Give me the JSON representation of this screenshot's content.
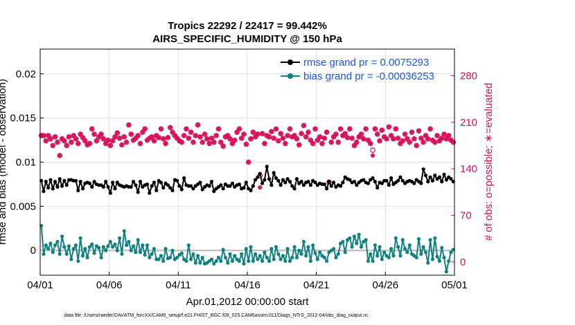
{
  "chart_data": {
    "type": "line",
    "title": "Tropics 22292 / 22417 = 99.442%",
    "subtitle": "AIRS_SPECIFIC_HUMIDITY @ 150 hPa",
    "xlabel": "Apr.01,2012 00:00:00 start",
    "ylabel_left": "rmse and bias (model - observation)",
    "ylabel_right": "# of obs: o=possible; ∗=evaluated",
    "footer": "data file: /Users/raeder/DAI/ATM_forcXX/CAM6_setup/f.e21.FHIST_BGC.f09_025.CAM6assim.011/Diags_NTrS_2012-04/obs_diag_output.nc",
    "xlim": [
      0,
      30
    ],
    "ylim_left": [
      -0.0028,
      0.0228
    ],
    "ylim_right": [
      -20,
      320
    ],
    "x_ticks": [
      0,
      5,
      10,
      15,
      20,
      25,
      30
    ],
    "x_tick_labels": [
      "04/01",
      "04/06",
      "04/11",
      "04/16",
      "04/21",
      "04/26",
      "05/01"
    ],
    "y_left_ticks": [
      0,
      0.005,
      0.01,
      0.015,
      0.02
    ],
    "y_left_tick_labels": [
      "0",
      "0.005",
      "0.01",
      "0.015",
      "0.02"
    ],
    "y_right_ticks": [
      0,
      70,
      140,
      210,
      280
    ],
    "y_right_tick_labels": [
      "0",
      "70",
      "140",
      "210",
      "280"
    ],
    "grid": true,
    "legend_position": "top-right",
    "colors": {
      "rmse": "#000000",
      "bias": "#118080",
      "obs": "#d6105a",
      "zero": "#b8b8b8",
      "legend_text": "#1a56e0"
    },
    "series": [
      {
        "name": "rmse grand pr = 0.0075293",
        "axis": "left",
        "values": [
          0.0079,
          0.0067,
          0.0078,
          0.0071,
          0.008,
          0.007,
          0.0078,
          0.0072,
          0.0081,
          0.0073,
          0.0079,
          0.0074,
          0.008,
          0.008,
          0.0079,
          0.0079,
          0.0068,
          0.0078,
          0.007,
          0.0076,
          0.0077,
          0.0076,
          0.0072,
          0.0078,
          0.0075,
          0.0074,
          0.0074,
          0.0072,
          0.0078,
          0.0072,
          0.0065,
          0.0077,
          0.007,
          0.0077,
          0.0074,
          0.0073,
          0.0072,
          0.0073,
          0.0072,
          0.0072,
          0.0078,
          0.0074,
          0.0066,
          0.0078,
          0.0072,
          0.0074,
          0.0075,
          0.0065,
          0.0073,
          0.0077,
          0.0068,
          0.0079,
          0.0077,
          0.0071,
          0.0076,
          0.0074,
          0.0071,
          0.0068,
          0.008,
          0.0079,
          0.0073,
          0.0069,
          0.0082,
          0.0074,
          0.0073,
          0.0073,
          0.007,
          0.0073,
          0.0075,
          0.0077,
          0.0069,
          0.0072,
          0.0074,
          0.0073,
          0.0078,
          0.0067,
          0.007,
          0.0072,
          0.0074,
          0.007,
          0.0075,
          0.0073,
          0.0073,
          0.0076,
          0.0072,
          0.0074,
          0.0075,
          0.007,
          0.0071,
          0.0077,
          0.007,
          0.0068,
          0.0073,
          0.008,
          0.0083,
          0.0087,
          0.0076,
          0.008,
          0.0095,
          0.0081,
          0.0074,
          0.0088,
          0.0082,
          0.0079,
          0.0074,
          0.008,
          0.0077,
          0.0081,
          0.0078,
          0.0073,
          0.007,
          0.0081,
          0.0076,
          0.0078,
          0.0074,
          0.0077,
          0.0078,
          0.0074,
          0.0079,
          0.0077,
          0.0074,
          0.0076,
          0.0075,
          0.0075,
          0.007,
          0.0078,
          0.0073,
          0.0077,
          0.0072,
          0.0074,
          0.0073,
          0.0077,
          0.0083,
          0.0081,
          0.008,
          0.0077,
          0.0078,
          0.0074,
          0.0077,
          0.0079,
          0.008,
          0.0077,
          0.0076,
          0.008,
          0.0082,
          0.0078,
          0.0071,
          0.0077,
          0.0076,
          0.0079,
          0.0079,
          0.0074,
          0.0082,
          0.0075,
          0.0077,
          0.0079,
          0.0083,
          0.0079,
          0.0076,
          0.0078,
          0.0079,
          0.0078,
          0.0076,
          0.008,
          0.0078,
          0.0076,
          0.0092,
          0.0085,
          0.0078,
          0.0083,
          0.0079,
          0.0085,
          0.0081,
          0.0083,
          0.0078,
          0.0086,
          0.008,
          0.0083,
          0.0081,
          0.0078
        ]
      },
      {
        "name": "bias grand pr = -0.00036253",
        "axis": "left",
        "values": [
          0.0028,
          -0.0004,
          0.0006,
          0.0002,
          0.0008,
          -0.0002,
          0.0006,
          0.001,
          -0.0004,
          0.0016,
          0.0004,
          -0.0004,
          0.0005,
          -0.001,
          0.0002,
          0.0006,
          -0.0012,
          0.0014,
          -0.0006,
          0.0002,
          -0.0008,
          0.0004,
          0.0007,
          -0.0003,
          0.0005,
          0.0003,
          -0.0008,
          0.0004,
          0.0,
          0.0005,
          0.001,
          0.0004,
          0.0007,
          0.0,
          0.0014,
          -0.0004,
          0.0022,
          0.0006,
          0.001,
          0.0,
          0.0005,
          -0.0002,
          0.0012,
          -0.0002,
          0.0006,
          -0.0005,
          0.0006,
          -0.0008,
          -0.0004,
          0.0002,
          -0.001,
          -0.001,
          -0.0006,
          -0.0012,
          0.0002,
          -0.0009,
          -0.0008,
          0.0,
          -0.001,
          -0.0008,
          -0.0005,
          -0.0003,
          -0.001,
          -0.0012,
          0.0006,
          -0.001,
          -0.0004,
          -0.0014,
          -0.0006,
          -0.0014,
          -0.0008,
          -0.0015,
          -0.0014,
          -0.0012,
          -0.001,
          -0.0015,
          -0.0012,
          -0.0008,
          -0.0012,
          0.0001,
          -0.0008,
          -0.0014,
          -0.0004,
          -0.0012,
          -0.0006,
          -0.001,
          -0.0012,
          -0.0004,
          -0.0015,
          0.0002,
          -0.0012,
          0.0004,
          -0.0012,
          -0.0004,
          -0.001,
          -0.0006,
          -0.0012,
          -0.0002,
          -0.0008,
          -0.0012,
          0.0002,
          -0.001,
          0.0004,
          -0.0004,
          -0.001,
          -0.0006,
          -0.0012,
          0.0002,
          -0.0012,
          -0.0008,
          0.0004,
          -0.0008,
          0.0,
          -0.0004,
          0.001,
          -0.0006,
          0.0004,
          -0.0012,
          0.0006,
          -0.0003,
          -0.001,
          -0.0002,
          -0.0006,
          -0.0008,
          -0.0012,
          -0.0002,
          0.0,
          0.0002,
          -0.0008,
          -0.0004,
          0.0008,
          0.001,
          -0.0002,
          0.0012,
          0.0014,
          0.0004,
          0.0016,
          0.0008,
          0.0018,
          0.0004,
          0.001,
          0.0012,
          -0.0012,
          -0.0004,
          -0.0012,
          0.0006,
          -0.0006,
          0.0004,
          -0.001,
          -0.0002,
          -0.0006,
          -0.0008,
          0.0002,
          -0.0006,
          0.0014,
          0.0004,
          -0.0006,
          0.0012,
          0.0002,
          -0.0002,
          0.0006,
          -0.0004,
          -0.0006,
          -0.0008,
          0.0013,
          -0.0004,
          0.0004,
          -0.0002,
          -0.0014,
          0.0012,
          -0.001,
          0.0014,
          -0.0007,
          -0.0012,
          0.0003,
          -0.0008,
          -0.0024,
          -0.0012,
          -0.0002,
          0.0001
        ]
      },
      {
        "name": "# of obs possible",
        "axis": "right",
        "values": [
          190,
          190,
          182,
          190,
          185,
          175,
          188,
          180,
          160,
          185,
          182,
          175,
          188,
          180,
          190,
          185,
          178,
          192,
          187,
          182,
          176,
          178,
          200,
          192,
          182,
          188,
          192,
          185,
          178,
          183,
          175,
          182,
          188,
          194,
          186,
          176,
          188,
          180,
          206,
          192,
          183,
          186,
          190,
          178,
          195,
          200,
          183,
          186,
          188,
          182,
          190,
          187,
          200,
          185,
          178,
          187,
          202,
          195,
          190,
          186,
          182,
          180,
          190,
          200,
          186,
          195,
          180,
          190,
          206,
          188,
          180,
          192,
          185,
          178,
          186,
          180,
          190,
          200,
          180,
          174,
          188,
          190,
          185,
          178,
          183,
          195,
          200,
          186,
          192,
          177,
          150,
          185,
          195,
          188,
          192,
          130,
          193,
          178,
          190,
          188,
          196,
          186,
          200,
          182,
          193,
          186,
          178,
          190,
          200,
          188,
          190,
          185,
          176,
          193,
          205,
          188,
          195,
          183,
          178,
          200,
          183,
          188,
          178,
          186,
          195,
          120,
          180,
          188,
          192,
          180,
          200,
          190,
          193,
          187,
          200,
          186,
          175,
          180,
          188,
          192,
          185,
          200,
          183,
          178,
          168,
          200,
          192,
          182,
          198,
          188,
          185,
          203,
          190,
          185,
          200,
          186,
          178,
          182,
          192,
          185,
          180,
          195,
          185,
          175,
          197,
          186,
          180,
          190,
          185,
          200,
          183,
          180,
          190,
          182,
          186,
          192,
          185,
          190,
          183,
          180
        ]
      },
      {
        "name": "# of obs evaluated",
        "axis": "right",
        "values": [
          190,
          190,
          182,
          190,
          185,
          175,
          188,
          180,
          160,
          185,
          182,
          175,
          188,
          180,
          190,
          185,
          178,
          192,
          187,
          182,
          176,
          178,
          200,
          192,
          182,
          188,
          192,
          185,
          178,
          183,
          175,
          182,
          188,
          194,
          186,
          176,
          188,
          180,
          206,
          192,
          183,
          186,
          190,
          178,
          195,
          200,
          183,
          186,
          188,
          182,
          190,
          187,
          200,
          185,
          178,
          187,
          202,
          195,
          190,
          186,
          182,
          180,
          190,
          200,
          186,
          195,
          180,
          190,
          206,
          188,
          180,
          192,
          185,
          178,
          186,
          180,
          190,
          200,
          180,
          174,
          188,
          190,
          185,
          178,
          183,
          195,
          200,
          186,
          192,
          177,
          150,
          185,
          195,
          188,
          192,
          112,
          193,
          178,
          190,
          188,
          196,
          186,
          200,
          182,
          193,
          186,
          178,
          190,
          200,
          188,
          190,
          185,
          176,
          193,
          205,
          188,
          195,
          183,
          178,
          200,
          183,
          188,
          178,
          186,
          195,
          120,
          180,
          188,
          192,
          180,
          200,
          190,
          193,
          187,
          200,
          186,
          175,
          180,
          188,
          192,
          185,
          200,
          183,
          178,
          160,
          200,
          192,
          182,
          198,
          188,
          185,
          203,
          190,
          185,
          200,
          186,
          178,
          182,
          192,
          185,
          180,
          195,
          185,
          175,
          197,
          186,
          180,
          190,
          185,
          200,
          183,
          180,
          190,
          182,
          186,
          192,
          185,
          190,
          183,
          180
        ]
      }
    ]
  }
}
